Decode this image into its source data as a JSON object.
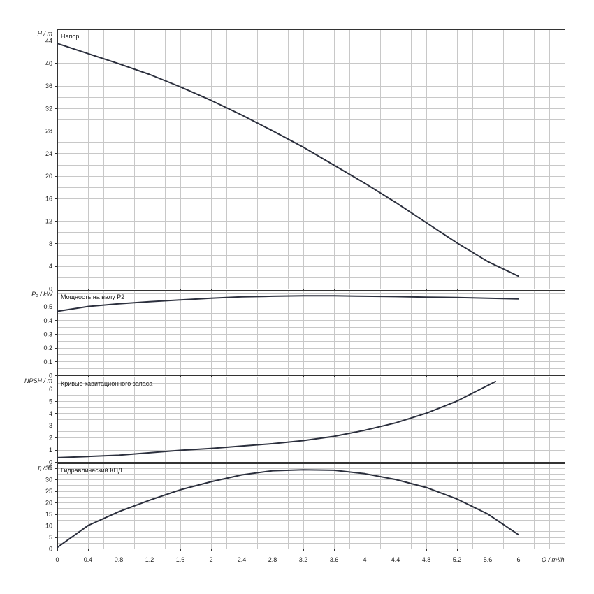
{
  "colors": {
    "curve": "#2b2f3d",
    "grid": "#c8c8c8",
    "frame": "#333333"
  },
  "x_axis": {
    "label": "Q / m³/h",
    "range": [
      0,
      6.6
    ],
    "ticks": [
      "0",
      "0.4",
      "0.8",
      "1.2",
      "1.6",
      "2",
      "2.4",
      "2.8",
      "3.2",
      "3.6",
      "4",
      "4.4",
      "4.8",
      "5.2",
      "5.6",
      "6"
    ]
  },
  "chart_data": [
    {
      "type": "line",
      "title": "Напор",
      "ylabel": "H / m",
      "ylim": [
        0,
        46
      ],
      "yticks": [
        0,
        4,
        8,
        12,
        16,
        20,
        24,
        28,
        32,
        36,
        40,
        44
      ],
      "x": [
        0,
        0.4,
        0.8,
        1.2,
        1.6,
        2.0,
        2.4,
        2.8,
        3.2,
        3.6,
        4.0,
        4.4,
        4.8,
        5.2,
        5.6,
        6.0
      ],
      "y": [
        43.5,
        41.7,
        39.9,
        38.0,
        35.8,
        33.4,
        30.8,
        28.0,
        25.1,
        21.9,
        18.7,
        15.3,
        11.7,
        8.1,
        4.8,
        2.2
      ]
    },
    {
      "type": "line",
      "title": "Мощность на валу P2",
      "ylabel": "P₂ / kW",
      "ylim": [
        0,
        0.62
      ],
      "yticks": [
        0,
        0.1,
        0.2,
        0.3,
        0.4,
        0.5
      ],
      "x": [
        0,
        0.4,
        0.8,
        1.2,
        1.6,
        2.0,
        2.4,
        2.8,
        3.2,
        3.6,
        4.0,
        4.4,
        4.8,
        5.2,
        5.6,
        6.0
      ],
      "y": [
        0.465,
        0.5,
        0.52,
        0.535,
        0.548,
        0.56,
        0.57,
        0.575,
        0.578,
        0.578,
        0.575,
        0.572,
        0.568,
        0.565,
        0.56,
        0.555
      ]
    },
    {
      "type": "line",
      "title": "Кривые кавитационного запаса",
      "ylabel": "NPSH / m",
      "ylim": [
        0,
        7
      ],
      "yticks": [
        0,
        1,
        2,
        3,
        4,
        5,
        6
      ],
      "x": [
        0,
        0.4,
        0.8,
        1.2,
        1.6,
        2.0,
        2.4,
        2.8,
        3.2,
        3.6,
        4.0,
        4.4,
        4.8,
        5.2,
        5.7
      ],
      "y": [
        0.35,
        0.45,
        0.55,
        0.75,
        0.95,
        1.1,
        1.3,
        1.5,
        1.75,
        2.1,
        2.6,
        3.2,
        4.0,
        5.0,
        6.6
      ]
    },
    {
      "type": "line",
      "title": "Гидравлический КПД",
      "ylabel": "η / %",
      "ylim": [
        0,
        37
      ],
      "yticks": [
        0,
        5,
        10,
        15,
        20,
        25,
        30,
        35
      ],
      "x": [
        0,
        0.4,
        0.8,
        1.2,
        1.6,
        2.0,
        2.4,
        2.8,
        3.2,
        3.6,
        4.0,
        4.4,
        4.8,
        5.2,
        5.6,
        6.0
      ],
      "y": [
        0.5,
        10,
        16,
        21,
        25.5,
        29,
        32,
        33.8,
        34.2,
        34,
        32.5,
        30,
        26.5,
        21.5,
        15,
        6
      ]
    }
  ]
}
